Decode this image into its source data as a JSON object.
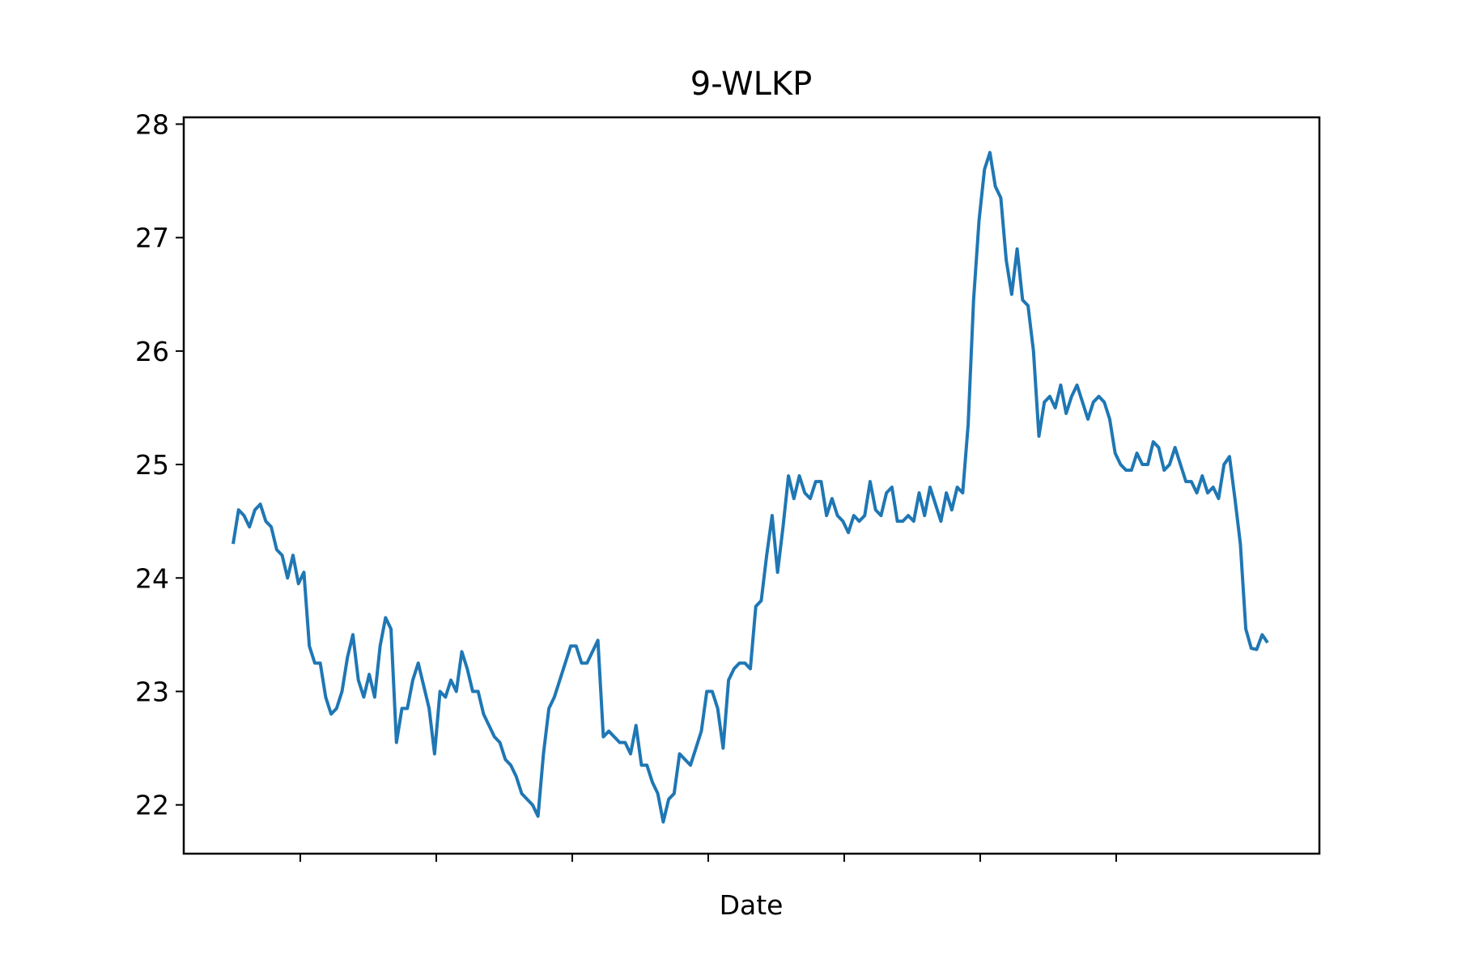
{
  "chart_data": {
    "type": "line",
    "title": "9-WLKP",
    "xlabel": "Date",
    "ylabel": "",
    "ylim": [
      21.57,
      28.06
    ],
    "yticks": [
      22,
      23,
      24,
      25,
      26,
      27,
      28
    ],
    "xticks_labeled": false,
    "x_tick_count": 7,
    "grid": false,
    "legend": "none",
    "line_color": "#1f77b4",
    "series": [
      {
        "values": [
          24.3,
          24.6,
          24.55,
          24.45,
          24.6,
          24.65,
          24.5,
          24.45,
          24.25,
          24.2,
          24.0,
          24.2,
          23.95,
          24.05,
          23.4,
          23.25,
          23.25,
          22.95,
          22.8,
          22.85,
          23.0,
          23.3,
          23.5,
          23.1,
          22.95,
          23.15,
          22.95,
          23.4,
          23.65,
          23.55,
          22.55,
          22.85,
          22.85,
          23.1,
          23.25,
          23.05,
          22.85,
          22.45,
          23.0,
          22.95,
          23.1,
          23.0,
          23.35,
          23.2,
          23.0,
          23.0,
          22.8,
          22.7,
          22.6,
          22.55,
          22.4,
          22.35,
          22.25,
          22.1,
          22.05,
          22.0,
          21.9,
          22.45,
          22.85,
          22.95,
          23.1,
          23.25,
          23.4,
          23.4,
          23.25,
          23.25,
          23.35,
          23.45,
          22.6,
          22.65,
          22.6,
          22.55,
          22.55,
          22.45,
          22.7,
          22.35,
          22.35,
          22.2,
          22.1,
          21.85,
          22.05,
          22.1,
          22.45,
          22.4,
          22.35,
          22.5,
          22.65,
          23.0,
          23.0,
          22.85,
          22.5,
          23.1,
          23.2,
          23.25,
          23.25,
          23.2,
          23.75,
          23.8,
          24.2,
          24.55,
          24.05,
          24.45,
          24.9,
          24.7,
          24.9,
          24.75,
          24.7,
          24.85,
          24.85,
          24.55,
          24.7,
          24.55,
          24.5,
          24.4,
          24.55,
          24.5,
          24.55,
          24.85,
          24.6,
          24.55,
          24.75,
          24.8,
          24.5,
          24.5,
          24.55,
          24.5,
          24.75,
          24.55,
          24.8,
          24.65,
          24.5,
          24.75,
          24.6,
          24.8,
          24.75,
          25.35,
          26.45,
          27.15,
          27.6,
          27.75,
          27.45,
          27.35,
          26.8,
          26.5,
          26.9,
          26.45,
          26.4,
          26.0,
          25.25,
          25.55,
          25.6,
          25.5,
          25.7,
          25.45,
          25.6,
          25.7,
          25.55,
          25.4,
          25.55,
          25.6,
          25.55,
          25.4,
          25.1,
          25.0,
          24.95,
          24.95,
          25.1,
          25.0,
          25.0,
          25.2,
          25.15,
          24.95,
          25.0,
          25.15,
          25.0,
          24.85,
          24.85,
          24.75,
          24.9,
          24.75,
          24.8,
          24.7,
          25.0,
          25.07,
          24.7,
          24.3,
          23.55,
          23.38,
          23.37,
          23.5,
          23.43
        ]
      }
    ]
  }
}
